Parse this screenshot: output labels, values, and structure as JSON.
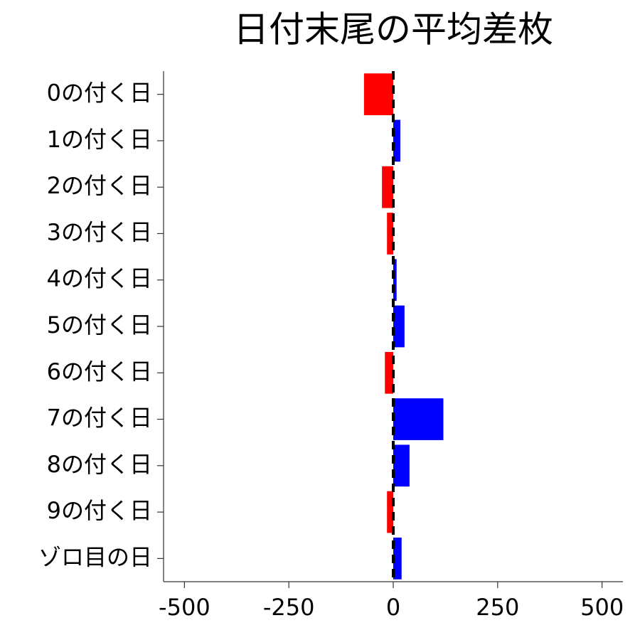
{
  "chart_data": {
    "type": "barh",
    "title": "日付末尾の平均差枚",
    "categories": [
      "0の付く日",
      "1の付く日",
      "2の付く日",
      "3の付く日",
      "4の付く日",
      "5の付く日",
      "6の付く日",
      "7の付く日",
      "8の付く日",
      "9の付く日",
      "ゾロ目の日"
    ],
    "values": [
      -70,
      17,
      -27,
      -15,
      8,
      27,
      -20,
      120,
      39,
      -15,
      20
    ],
    "positive_color": "#0000ff",
    "negative_color": "#ff0000",
    "xlim": [
      -550,
      550
    ],
    "xticks": [
      -500,
      -250,
      0,
      250,
      500
    ],
    "reference_line": 0,
    "grid": false
  }
}
